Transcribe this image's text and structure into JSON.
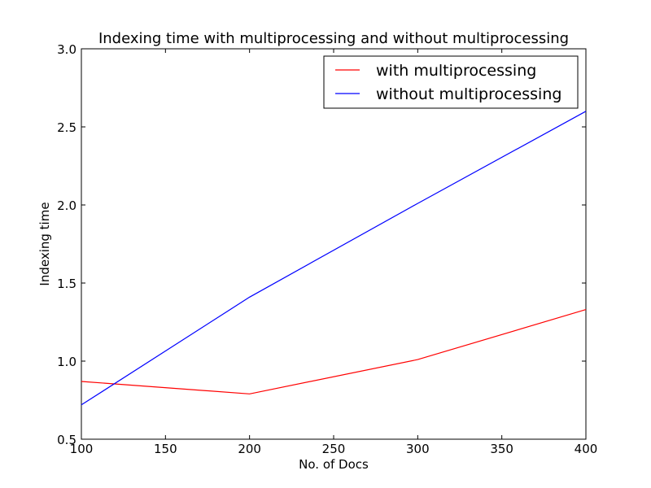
{
  "chart_data": {
    "type": "line",
    "title": "Indexing time with multiprocessing and without multiprocessing",
    "xlabel": "No. of Docs",
    "ylabel": "Indexing time",
    "x": [
      100,
      200,
      300,
      400
    ],
    "xlim": [
      100,
      400
    ],
    "ylim": [
      0.5,
      3.0
    ],
    "xticks": [
      "100",
      "150",
      "200",
      "250",
      "300",
      "350",
      "400"
    ],
    "yticks": [
      "0.5",
      "1.0",
      "1.5",
      "2.0",
      "2.5",
      "3.0"
    ],
    "grid": false,
    "legend_position": "top-right",
    "series": [
      {
        "name": "with multiprocessing",
        "color": "#ff0000",
        "values": [
          0.87,
          0.79,
          1.01,
          1.33
        ]
      },
      {
        "name": "without multiprocessing",
        "color": "#0000ff",
        "values": [
          0.72,
          1.41,
          2.01,
          2.6
        ]
      }
    ]
  }
}
